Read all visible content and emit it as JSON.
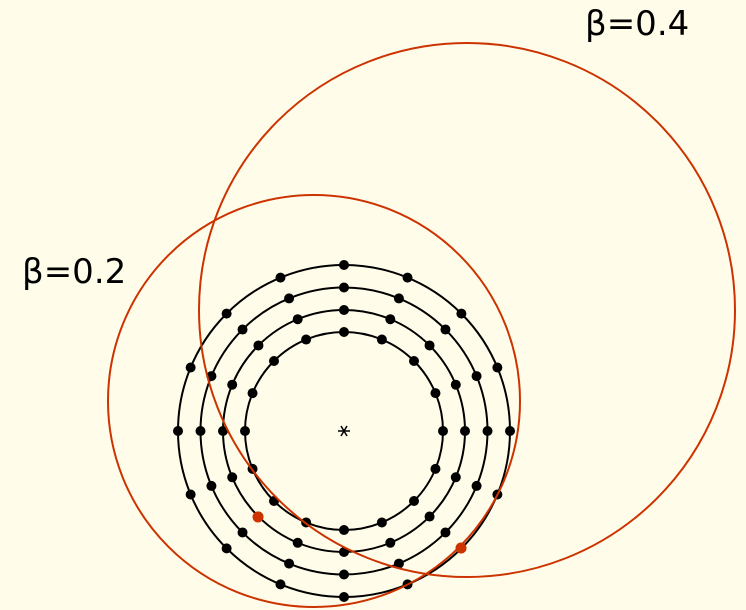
{
  "curves": [
    {
      "label": "β=0.2"
    },
    {
      "label": "β=0.4"
    }
  ]
}
